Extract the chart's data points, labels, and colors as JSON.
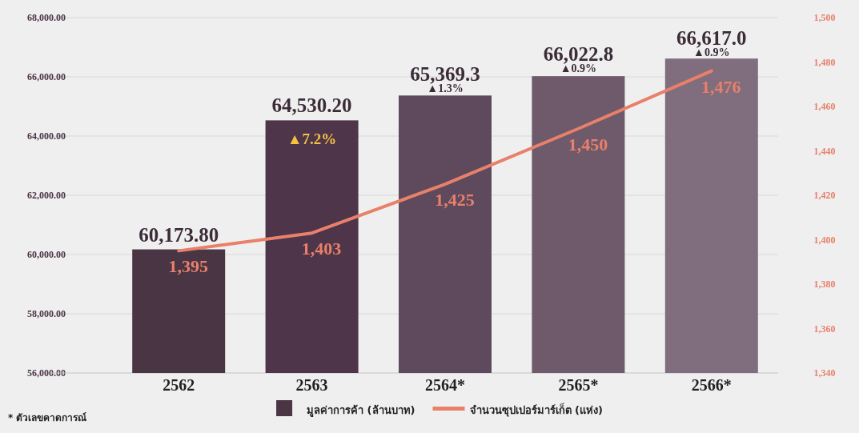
{
  "chart_data": {
    "type": "bar",
    "categories": [
      "2562",
      "2563",
      "2564*",
      "2565*",
      "2566*"
    ],
    "ylim": [
      56000,
      68000
    ],
    "yticks": [
      {
        "value": 56000,
        "label": "56,000.00"
      },
      {
        "value": 58000,
        "label": "58,000.00"
      },
      {
        "value": 60000,
        "label": "60,000.00"
      },
      {
        "value": 62000,
        "label": "62,000.00"
      },
      {
        "value": 64000,
        "label": "64,000.00"
      },
      {
        "value": 66000,
        "label": "66,000.00"
      },
      {
        "value": 68000,
        "label": "68,000.00"
      }
    ],
    "y2lim": [
      1340,
      1500
    ],
    "y2ticks": [
      {
        "value": 1340,
        "label": "1,340"
      },
      {
        "value": 1360,
        "label": "1,360"
      },
      {
        "value": 1380,
        "label": "1,380"
      },
      {
        "value": 1400,
        "label": "1,400"
      },
      {
        "value": 1420,
        "label": "1,420"
      },
      {
        "value": 1440,
        "label": "1,440"
      },
      {
        "value": 1460,
        "label": "1,460"
      },
      {
        "value": 1480,
        "label": "1,480"
      },
      {
        "value": 1500,
        "label": "1,500"
      }
    ],
    "series": [
      {
        "name": "มูลค่าการค้า (ล้านบาท)",
        "colors": [
          "#4a3545",
          "#4e3549",
          "#5e4a5c",
          "#6e5a6b",
          "#806d7e"
        ],
        "values": [
          60173.8,
          64530.2,
          65369.3,
          66022.8,
          66617.0
        ],
        "value_labels": [
          "60,173.80",
          "64,530.20",
          "65,369.3",
          "66,022.8",
          "66,617.0"
        ]
      },
      {
        "name": "จำนวนซุปเปอร์มาร์เก็ต (แห่ง)",
        "type": "line",
        "axis": "y2",
        "color": "#e8806a",
        "values": [
          1395,
          1403,
          1425,
          1450,
          1476
        ],
        "value_labels": [
          "1,395",
          "1,403",
          "1,425",
          "1,450",
          "1,476"
        ]
      }
    ],
    "annotations": [
      {
        "text": "▲7.2%",
        "x": "2563",
        "y": 64530.2
      },
      {
        "text": "▲1.3%",
        "x": "2564*",
        "y": 65500
      },
      {
        "text": "▲0.9%",
        "x": "2565*",
        "y": 66150
      },
      {
        "text": "▲0.9%",
        "x": "2566*",
        "y": 66700
      },
      "* ตัวเลขคาดการณ์"
    ],
    "grid": "y",
    "legend": "bottom"
  }
}
